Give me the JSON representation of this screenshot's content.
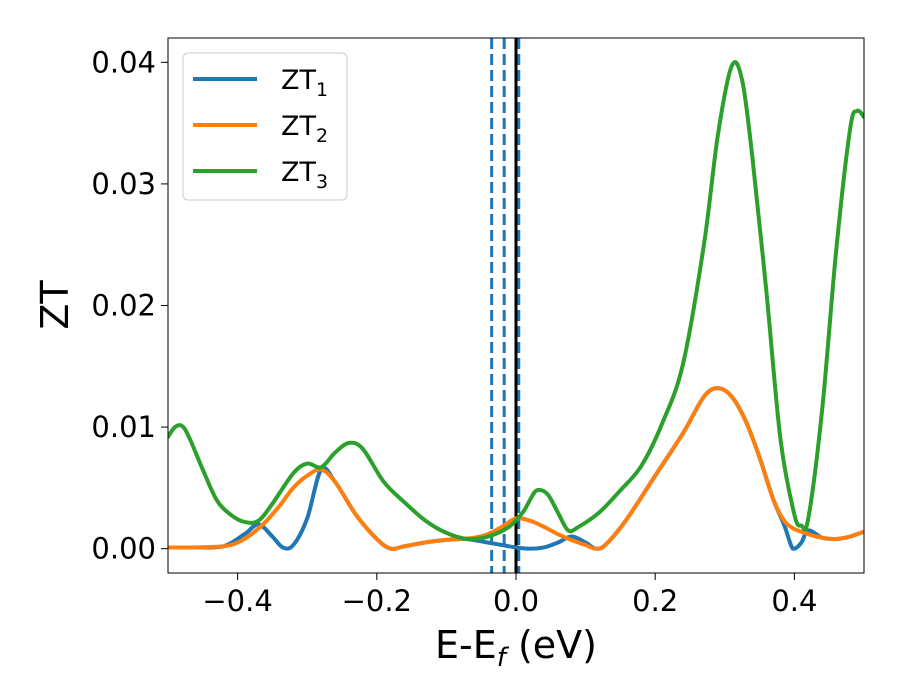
{
  "chart_data": {
    "type": "line",
    "xlabel": "E-E",
    "xlabel_sub": "f",
    "xlabel_unit": " (eV)",
    "ylabel": "ZT",
    "xlim": [
      -0.5,
      0.5
    ],
    "ylim": [
      -0.002,
      0.042
    ],
    "xticks": [
      -0.4,
      -0.2,
      0.0,
      0.2,
      0.4
    ],
    "xtick_labels": [
      "−0.4",
      "−0.2",
      "0.0",
      "0.2",
      "0.4"
    ],
    "yticks": [
      0.0,
      0.01,
      0.02,
      0.03,
      0.04
    ],
    "ytick_labels": [
      "0.00",
      "0.01",
      "0.02",
      "0.03",
      "0.04"
    ],
    "grid": false,
    "legend_position": "upper-left",
    "vlines": [
      {
        "x": -0.035,
        "style": "dashed",
        "color": "#1f77b4"
      },
      {
        "x": -0.017,
        "style": "dashed",
        "color": "#1f77b4"
      },
      {
        "x": 0.004,
        "style": "dashed",
        "color": "#1f77b4"
      },
      {
        "x": 0.0,
        "style": "solid",
        "color": "#000000"
      }
    ],
    "series": [
      {
        "name": "ZT",
        "name_sub": "1",
        "color": "#1f77b4",
        "points": [
          [
            -0.5,
            0.0001
          ],
          [
            -0.46,
            0.0001
          ],
          [
            -0.42,
            0.0002
          ],
          [
            -0.39,
            0.0012
          ],
          [
            -0.37,
            0.002
          ],
          [
            -0.35,
            0.001
          ],
          [
            -0.335,
            0.0001
          ],
          [
            -0.32,
            0.0003
          ],
          [
            -0.3,
            0.0025
          ],
          [
            -0.28,
            0.0065
          ],
          [
            -0.26,
            0.0055
          ],
          [
            -0.23,
            0.0028
          ],
          [
            -0.2,
            0.0008
          ],
          [
            -0.18,
            0.0
          ],
          [
            -0.16,
            0.0002
          ],
          [
            -0.12,
            0.0006
          ],
          [
            -0.08,
            0.0008
          ],
          [
            -0.06,
            0.0007
          ],
          [
            -0.04,
            0.0005
          ],
          [
            -0.02,
            0.0003
          ],
          [
            0.0,
            0.0001
          ],
          [
            0.02,
            0.0
          ],
          [
            0.04,
            0.0001
          ],
          [
            0.06,
            0.0005
          ],
          [
            0.08,
            0.001
          ],
          [
            0.1,
            0.0005
          ],
          [
            0.115,
            0.0
          ],
          [
            0.13,
            0.0004
          ],
          [
            0.16,
            0.0025
          ],
          [
            0.2,
            0.006
          ],
          [
            0.24,
            0.0095
          ],
          [
            0.27,
            0.0125
          ],
          [
            0.29,
            0.0132
          ],
          [
            0.31,
            0.0125
          ],
          [
            0.33,
            0.0105
          ],
          [
            0.35,
            0.0075
          ],
          [
            0.37,
            0.004
          ],
          [
            0.385,
            0.002
          ],
          [
            0.395,
            0.0003
          ],
          [
            0.4,
            0.0
          ],
          [
            0.41,
            0.0005
          ],
          [
            0.42,
            0.0015
          ],
          [
            0.44,
            0.0009
          ],
          [
            0.46,
            0.0008
          ],
          [
            0.48,
            0.001
          ],
          [
            0.5,
            0.0014
          ]
        ]
      },
      {
        "name": "ZT",
        "name_sub": "2",
        "color": "#ff7f0e",
        "points": [
          [
            -0.5,
            0.0001
          ],
          [
            -0.46,
            0.0001
          ],
          [
            -0.42,
            0.0002
          ],
          [
            -0.4,
            0.0005
          ],
          [
            -0.38,
            0.0012
          ],
          [
            -0.36,
            0.0022
          ],
          [
            -0.34,
            0.0035
          ],
          [
            -0.32,
            0.005
          ],
          [
            -0.3,
            0.006
          ],
          [
            -0.28,
            0.0065
          ],
          [
            -0.26,
            0.0055
          ],
          [
            -0.23,
            0.0028
          ],
          [
            -0.2,
            0.0008
          ],
          [
            -0.18,
            0.0
          ],
          [
            -0.16,
            0.0002
          ],
          [
            -0.12,
            0.0006
          ],
          [
            -0.08,
            0.0008
          ],
          [
            -0.06,
            0.0009
          ],
          [
            -0.04,
            0.0012
          ],
          [
            -0.02,
            0.0018
          ],
          [
            0.0,
            0.0025
          ],
          [
            0.02,
            0.0023
          ],
          [
            0.04,
            0.0018
          ],
          [
            0.06,
            0.0012
          ],
          [
            0.08,
            0.0007
          ],
          [
            0.1,
            0.0003
          ],
          [
            0.115,
            0.0
          ],
          [
            0.13,
            0.0004
          ],
          [
            0.16,
            0.0025
          ],
          [
            0.2,
            0.006
          ],
          [
            0.24,
            0.0095
          ],
          [
            0.27,
            0.0125
          ],
          [
            0.29,
            0.0132
          ],
          [
            0.31,
            0.0125
          ],
          [
            0.33,
            0.0105
          ],
          [
            0.35,
            0.0075
          ],
          [
            0.37,
            0.004
          ],
          [
            0.39,
            0.002
          ],
          [
            0.42,
            0.0012
          ],
          [
            0.44,
            0.0009
          ],
          [
            0.46,
            0.0008
          ],
          [
            0.48,
            0.001
          ],
          [
            0.5,
            0.0014
          ]
        ]
      },
      {
        "name": "ZT",
        "name_sub": "3",
        "color": "#2ca02c",
        "points": [
          [
            -0.5,
            0.0092
          ],
          [
            -0.49,
            0.01
          ],
          [
            -0.48,
            0.0101
          ],
          [
            -0.47,
            0.0092
          ],
          [
            -0.45,
            0.0065
          ],
          [
            -0.43,
            0.004
          ],
          [
            -0.41,
            0.0028
          ],
          [
            -0.39,
            0.0022
          ],
          [
            -0.37,
            0.0023
          ],
          [
            -0.35,
            0.0037
          ],
          [
            -0.32,
            0.0062
          ],
          [
            -0.3,
            0.007
          ],
          [
            -0.28,
            0.0067
          ],
          [
            -0.26,
            0.0079
          ],
          [
            -0.24,
            0.0087
          ],
          [
            -0.22,
            0.0082
          ],
          [
            -0.19,
            0.0055
          ],
          [
            -0.16,
            0.0038
          ],
          [
            -0.13,
            0.0023
          ],
          [
            -0.1,
            0.0013
          ],
          [
            -0.07,
            0.0008
          ],
          [
            -0.04,
            0.001
          ],
          [
            -0.01,
            0.0018
          ],
          [
            0.01,
            0.003
          ],
          [
            0.02,
            0.004
          ],
          [
            0.03,
            0.0048
          ],
          [
            0.045,
            0.0045
          ],
          [
            0.06,
            0.003
          ],
          [
            0.075,
            0.0015
          ],
          [
            0.09,
            0.0018
          ],
          [
            0.12,
            0.003
          ],
          [
            0.15,
            0.0048
          ],
          [
            0.18,
            0.0068
          ],
          [
            0.21,
            0.0103
          ],
          [
            0.24,
            0.0152
          ],
          [
            0.27,
            0.025
          ],
          [
            0.29,
            0.034
          ],
          [
            0.31,
            0.0397
          ],
          [
            0.325,
            0.0385
          ],
          [
            0.34,
            0.032
          ],
          [
            0.36,
            0.021
          ],
          [
            0.38,
            0.009
          ],
          [
            0.4,
            0.0028
          ],
          [
            0.41,
            0.0019
          ],
          [
            0.42,
            0.0025
          ],
          [
            0.44,
            0.0115
          ],
          [
            0.46,
            0.0245
          ],
          [
            0.48,
            0.0345
          ],
          [
            0.49,
            0.036
          ],
          [
            0.5,
            0.0355
          ]
        ]
      }
    ]
  }
}
